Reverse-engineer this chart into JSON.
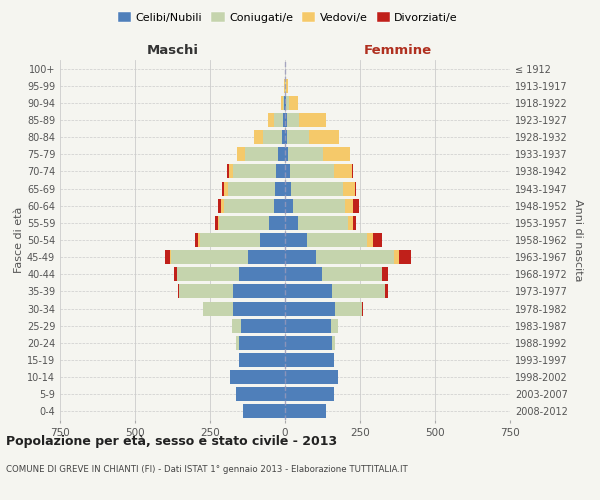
{
  "age_groups": [
    "0-4",
    "5-9",
    "10-14",
    "15-19",
    "20-24",
    "25-29",
    "30-34",
    "35-39",
    "40-44",
    "45-49",
    "50-54",
    "55-59",
    "60-64",
    "65-69",
    "70-74",
    "75-79",
    "80-84",
    "85-89",
    "90-94",
    "95-99",
    "100+"
  ],
  "birth_years": [
    "2008-2012",
    "2003-2007",
    "1998-2002",
    "1993-1997",
    "1988-1992",
    "1983-1987",
    "1978-1982",
    "1973-1977",
    "1968-1972",
    "1963-1967",
    "1958-1962",
    "1953-1957",
    "1948-1952",
    "1943-1947",
    "1938-1942",
    "1933-1937",
    "1928-1932",
    "1923-1927",
    "1918-1922",
    "1913-1917",
    "≤ 1912"
  ],
  "colors": {
    "celibe": "#4f7fba",
    "coniugato": "#c5d4ad",
    "vedovo": "#f5c96a",
    "divorziato": "#c0201a",
    "bg": "#f5f5f0",
    "dashed_line": "#9999bb"
  },
  "maschi": {
    "celibe": [
      140,
      165,
      185,
      155,
      155,
      148,
      172,
      175,
      155,
      125,
      82,
      52,
      36,
      32,
      30,
      22,
      10,
      8,
      2,
      1,
      0
    ],
    "coniugato": [
      0,
      0,
      0,
      0,
      10,
      30,
      100,
      178,
      205,
      255,
      202,
      168,
      168,
      158,
      142,
      112,
      65,
      30,
      5,
      0,
      0
    ],
    "vedovo": [
      0,
      0,
      0,
      0,
      0,
      0,
      0,
      0,
      0,
      5,
      5,
      5,
      10,
      12,
      15,
      25,
      30,
      20,
      5,
      1,
      0
    ],
    "divorziato": [
      0,
      0,
      0,
      0,
      0,
      0,
      0,
      5,
      10,
      15,
      10,
      10,
      10,
      8,
      5,
      0,
      0,
      0,
      0,
      0,
      0
    ]
  },
  "femmine": {
    "nubile": [
      138,
      162,
      178,
      162,
      158,
      152,
      165,
      158,
      122,
      102,
      72,
      42,
      26,
      20,
      15,
      10,
      5,
      5,
      2,
      1,
      0
    ],
    "coniugata": [
      0,
      0,
      0,
      0,
      10,
      25,
      90,
      175,
      202,
      262,
      202,
      168,
      175,
      172,
      148,
      115,
      75,
      40,
      10,
      3,
      0
    ],
    "vedova": [
      0,
      0,
      0,
      0,
      0,
      0,
      0,
      0,
      0,
      15,
      20,
      15,
      25,
      40,
      60,
      90,
      100,
      90,
      30,
      5,
      0
    ],
    "divorziata": [
      0,
      0,
      0,
      0,
      0,
      0,
      5,
      10,
      20,
      40,
      30,
      10,
      20,
      5,
      5,
      0,
      0,
      0,
      0,
      0,
      0
    ]
  },
  "xlim": 750,
  "title": "Popolazione per età, sesso e stato civile - 2013",
  "subtitle": "COMUNE DI GREVE IN CHIANTI (FI) - Dati ISTAT 1° gennaio 2013 - Elaborazione TUTTITALIA.IT",
  "xlabel_left": "Maschi",
  "xlabel_right": "Femmine",
  "ylabel_left": "Fasce di età",
  "ylabel_right": "Anni di nascita",
  "legend_labels": [
    "Celibi/Nubili",
    "Coniugati/e",
    "Vedovi/e",
    "Divorziati/e"
  ]
}
